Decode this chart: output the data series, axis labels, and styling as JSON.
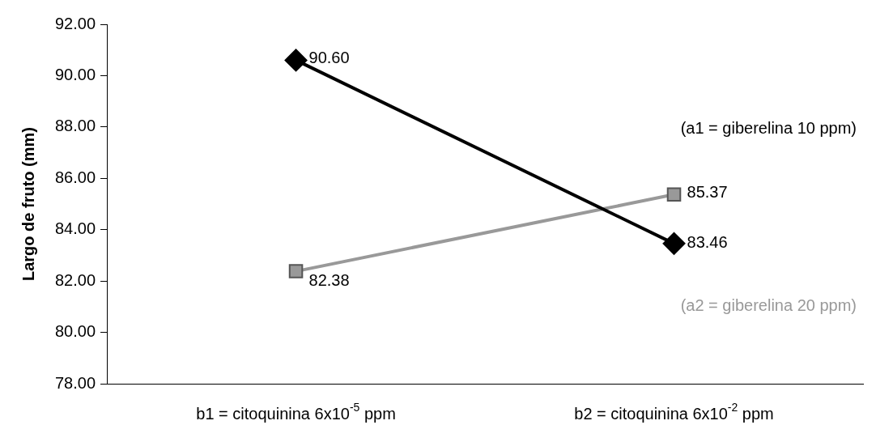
{
  "chart_data": {
    "type": "line",
    "ylabel": "Largo de fruto (mm)",
    "categories": [
      "b1 = citoquinina 6x10$^{-5}$ ppm",
      "b2 = citoquinina 6x10$^{-2}$ ppm"
    ],
    "series": [
      {
        "name": "(a1 = giberelina 10 ppm)",
        "color": "#000000",
        "marker": "diamond",
        "values": [
          90.6,
          83.46
        ],
        "value_labels": [
          "90.60",
          "83.46"
        ]
      },
      {
        "name": "(a2 = giberelina 20 ppm)",
        "color": "#999999",
        "marker": "square",
        "values": [
          82.38,
          85.37
        ],
        "value_labels": [
          "82.38",
          "85.37"
        ]
      }
    ],
    "ylim": [
      78,
      92
    ],
    "yticks": [
      {
        "value": 78,
        "label": "78.00"
      },
      {
        "value": 80,
        "label": "80.00"
      },
      {
        "value": 82,
        "label": "82.00"
      },
      {
        "value": 84,
        "label": "84.00"
      },
      {
        "value": 86,
        "label": "86.00"
      },
      {
        "value": 88,
        "label": "88.00"
      },
      {
        "value": 90,
        "label": "90.00"
      },
      {
        "value": 92,
        "label": "92.00"
      }
    ],
    "grid": false,
    "legend": false
  }
}
